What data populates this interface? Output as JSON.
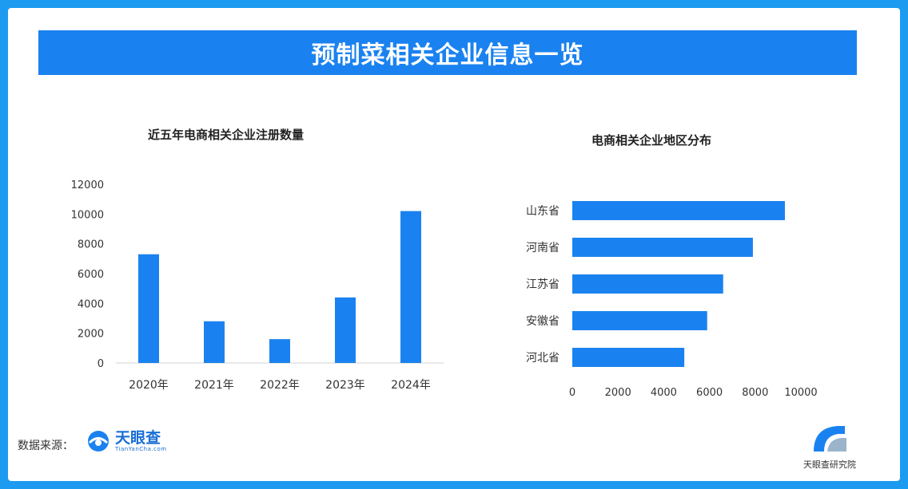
{
  "banner": {
    "title": "预制菜相关企业信息一览"
  },
  "colors": {
    "bar": "#1a82f0",
    "frame": "#1d9bf0",
    "banner": "#1a82f0"
  },
  "chart_data": [
    {
      "type": "bar",
      "title": "近五年电商相关企业注册数量",
      "categories": [
        "2020年",
        "2021年",
        "2022年",
        "2023年",
        "2024年"
      ],
      "values": [
        7300,
        2800,
        1600,
        4400,
        10200
      ],
      "ylim": [
        0,
        12000
      ],
      "yticks": [
        "0",
        "2000",
        "4000",
        "6000",
        "8000",
        "10000",
        "12000"
      ],
      "grid": false
    },
    {
      "type": "bar",
      "orientation": "horizontal",
      "title": "电商相关企业地区分布",
      "categories": [
        "山东省",
        "河南省",
        "江苏省",
        "安徽省",
        "河北省"
      ],
      "values": [
        9300,
        7900,
        6600,
        5900,
        4900
      ],
      "xlim": [
        0,
        10000
      ],
      "xticks": [
        "0",
        "2000",
        "4000",
        "6000",
        "8000",
        "10000"
      ],
      "grid": false
    }
  ],
  "footer": {
    "source_label": "数据来源：",
    "left_logo_name": "天眼查",
    "left_logo_sub": "TianYanCha.com",
    "right_logo_name": "天眼查研究院"
  }
}
